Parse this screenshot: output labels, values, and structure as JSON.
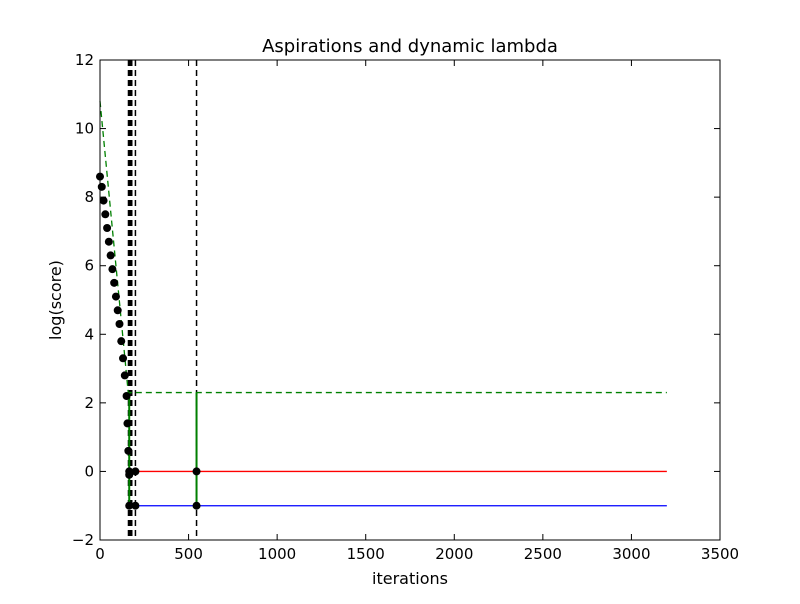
{
  "chart_data": {
    "type": "line",
    "title": "Aspirations and dynamic lambda",
    "xlabel": "iterations",
    "ylabel": "log(score)",
    "xlim": [
      0,
      3500
    ],
    "ylim": [
      -2,
      12
    ],
    "x_ticks": [
      0,
      500,
      1000,
      1500,
      2000,
      2500,
      3000,
      3500
    ],
    "x_tick_labels": [
      "0",
      "500",
      "1000",
      "1500",
      "2000",
      "2500",
      "3000",
      "3500"
    ],
    "y_ticks": [
      -2,
      0,
      2,
      4,
      6,
      8,
      10,
      12
    ],
    "y_tick_labels": [
      "−2",
      "0",
      "2",
      "4",
      "6",
      "8",
      "10",
      "12"
    ],
    "grid": false,
    "legend": "none",
    "colors": {
      "red": "#ff0000",
      "blue": "#0000ff",
      "green": "#008000",
      "black": "#000000"
    },
    "series": [
      {
        "style": "line",
        "color": "#ff0000",
        "x": [
          165,
          3200
        ],
        "y": [
          0,
          0
        ]
      },
      {
        "style": "line",
        "color": "#0000ff",
        "x": [
          165,
          3200
        ],
        "y": [
          -1,
          -1
        ]
      },
      {
        "style": "dashed",
        "color": "#008000",
        "x": [
          0,
          165,
          165,
          200,
          200,
          3200
        ],
        "y": [
          10.8,
          2.0,
          2.3,
          2.3,
          2.3,
          2.3
        ]
      },
      {
        "style": "solid-vertical",
        "color": "#008000",
        "x": [
          165,
          165,
          545,
          545
        ],
        "y": [
          -1,
          2.3,
          -1,
          2.3
        ]
      },
      {
        "style": "markers",
        "color": "#000000",
        "x": [
          0,
          10,
          20,
          30,
          40,
          50,
          60,
          70,
          80,
          90,
          100,
          110,
          120,
          130,
          140,
          150,
          155,
          160,
          165
        ],
        "y": [
          8.6,
          8.3,
          7.9,
          7.5,
          7.1,
          6.7,
          6.3,
          5.9,
          5.5,
          5.1,
          4.7,
          4.3,
          3.8,
          3.3,
          2.8,
          2.2,
          1.4,
          0.6,
          -0.1
        ]
      },
      {
        "style": "markers",
        "color": "#000000",
        "x": [
          165,
          200,
          545,
          165,
          200,
          545
        ],
        "y": [
          0,
          0,
          0,
          -1,
          -1,
          -1
        ]
      }
    ],
    "vlines_dashed": [
      165,
      170,
      175,
      200,
      545
    ],
    "vlines_thick": [
      165,
      175
    ]
  }
}
